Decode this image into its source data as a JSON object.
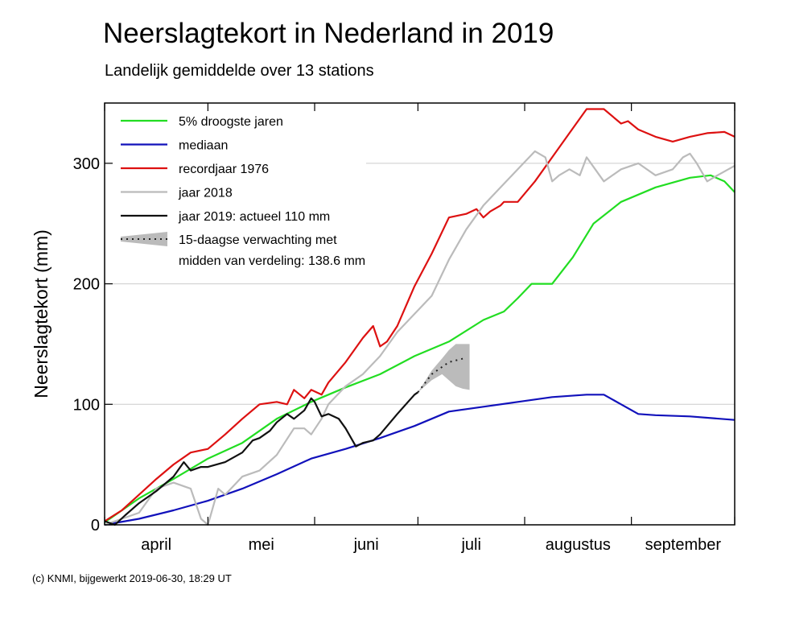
{
  "chart_data": {
    "type": "line",
    "title": "Neerslagtekort in Nederland in 2019",
    "subtitle": "Landelijk gemiddelde over 13 stations",
    "ylabel": "Neerslagtekort (mm)",
    "xlabel": "",
    "xlim": [
      0,
      183
    ],
    "ylim": [
      0,
      350
    ],
    "yticks": [
      0,
      100,
      200,
      300
    ],
    "month_boundaries": [
      0,
      30,
      61,
      91,
      122,
      153,
      183
    ],
    "month_labels": [
      {
        "label": "april",
        "x": 15
      },
      {
        "label": "mei",
        "x": 45.5
      },
      {
        "label": "juni",
        "x": 76
      },
      {
        "label": "juli",
        "x": 106.5
      },
      {
        "label": "augustus",
        "x": 137.5
      },
      {
        "label": "september",
        "x": 168
      }
    ],
    "grid": "horizontal",
    "legend_position": "top-left",
    "series": [
      {
        "name": "5% droogste jaren",
        "color": "#22dd22",
        "x": [
          0,
          10,
          20,
          30,
          40,
          50,
          60,
          70,
          80,
          90,
          100,
          110,
          116,
          120,
          124,
          130,
          136,
          142,
          150,
          160,
          170,
          176,
          180,
          183
        ],
        "y": [
          2,
          22,
          38,
          55,
          68,
          88,
          102,
          114,
          125,
          140,
          152,
          170,
          177,
          188,
          200,
          200,
          222,
          250,
          268,
          280,
          288,
          290,
          285,
          276
        ]
      },
      {
        "name": "mediaan",
        "color": "#1111bb",
        "x": [
          0,
          10,
          20,
          30,
          40,
          50,
          60,
          70,
          80,
          90,
          100,
          110,
          120,
          130,
          140,
          145,
          150,
          155,
          160,
          170,
          183
        ],
        "y": [
          0,
          5,
          12,
          20,
          30,
          42,
          55,
          63,
          72,
          82,
          94,
          98,
          102,
          106,
          108,
          108,
          100,
          92,
          91,
          90,
          87
        ]
      },
      {
        "name": "recordjaar 1976",
        "color": "#dd1111",
        "x": [
          0,
          5,
          10,
          15,
          20,
          25,
          30,
          35,
          40,
          45,
          50,
          53,
          55,
          58,
          60,
          63,
          65,
          70,
          75,
          78,
          80,
          82,
          85,
          90,
          95,
          100,
          105,
          108,
          110,
          112,
          115,
          116,
          120,
          125,
          130,
          135,
          140,
          145,
          150,
          152,
          155,
          160,
          165,
          170,
          175,
          180,
          183
        ],
        "y": [
          3,
          12,
          25,
          38,
          50,
          60,
          63,
          75,
          88,
          100,
          102,
          100,
          112,
          105,
          112,
          108,
          118,
          135,
          155,
          165,
          148,
          152,
          165,
          198,
          225,
          255,
          258,
          262,
          255,
          260,
          265,
          268,
          268,
          285,
          305,
          325,
          345,
          345,
          333,
          335,
          328,
          322,
          318,
          322,
          325,
          326,
          322
        ]
      },
      {
        "name": "jaar 2018",
        "color": "#bbbbbb",
        "x": [
          0,
          5,
          10,
          15,
          20,
          25,
          28,
          30,
          33,
          35,
          40,
          45,
          50,
          55,
          58,
          60,
          63,
          65,
          70,
          75,
          80,
          85,
          90,
          95,
          100,
          105,
          110,
          115,
          120,
          125,
          128,
          130,
          132,
          135,
          138,
          140,
          145,
          150,
          155,
          160,
          165,
          168,
          170,
          172,
          175,
          178,
          183
        ],
        "y": [
          0,
          5,
          10,
          30,
          35,
          30,
          5,
          0,
          30,
          25,
          40,
          45,
          58,
          80,
          80,
          75,
          88,
          100,
          115,
          125,
          140,
          160,
          175,
          190,
          220,
          245,
          265,
          280,
          295,
          310,
          305,
          285,
          290,
          295,
          290,
          305,
          285,
          295,
          300,
          290,
          295,
          305,
          308,
          300,
          285,
          290,
          298
        ]
      },
      {
        "name": "jaar 2019: actueel 110 mm",
        "color": "#111111",
        "x": [
          0,
          3,
          6,
          10,
          15,
          20,
          23,
          25,
          28,
          30,
          35,
          40,
          43,
          45,
          48,
          50,
          53,
          55,
          58,
          60,
          61,
          63,
          65,
          68,
          70,
          73,
          75,
          78,
          80,
          85,
          90,
          91
        ],
        "y": [
          3,
          0,
          8,
          18,
          28,
          40,
          52,
          45,
          48,
          48,
          52,
          60,
          70,
          72,
          78,
          85,
          92,
          88,
          95,
          105,
          102,
          90,
          92,
          88,
          80,
          65,
          68,
          70,
          75,
          92,
          108,
          110
        ]
      }
    ],
    "forecast": {
      "name": "15-daagse verwachting met",
      "name_line2": "midden van verdeling: 138.6 mm",
      "median_x": [
        91,
        95,
        100,
        105
      ],
      "median_y": [
        110,
        125,
        135,
        138.6
      ],
      "band_x": [
        91,
        95,
        98,
        100,
        102,
        104,
        106
      ],
      "band_upper": [
        110,
        128,
        138,
        145,
        150,
        150,
        150
      ],
      "band_lower": [
        110,
        120,
        125,
        120,
        115,
        113,
        112
      ]
    }
  },
  "footer": "(c) KNMI, bijgewerkt 2019-06-30, 18:29 UT"
}
